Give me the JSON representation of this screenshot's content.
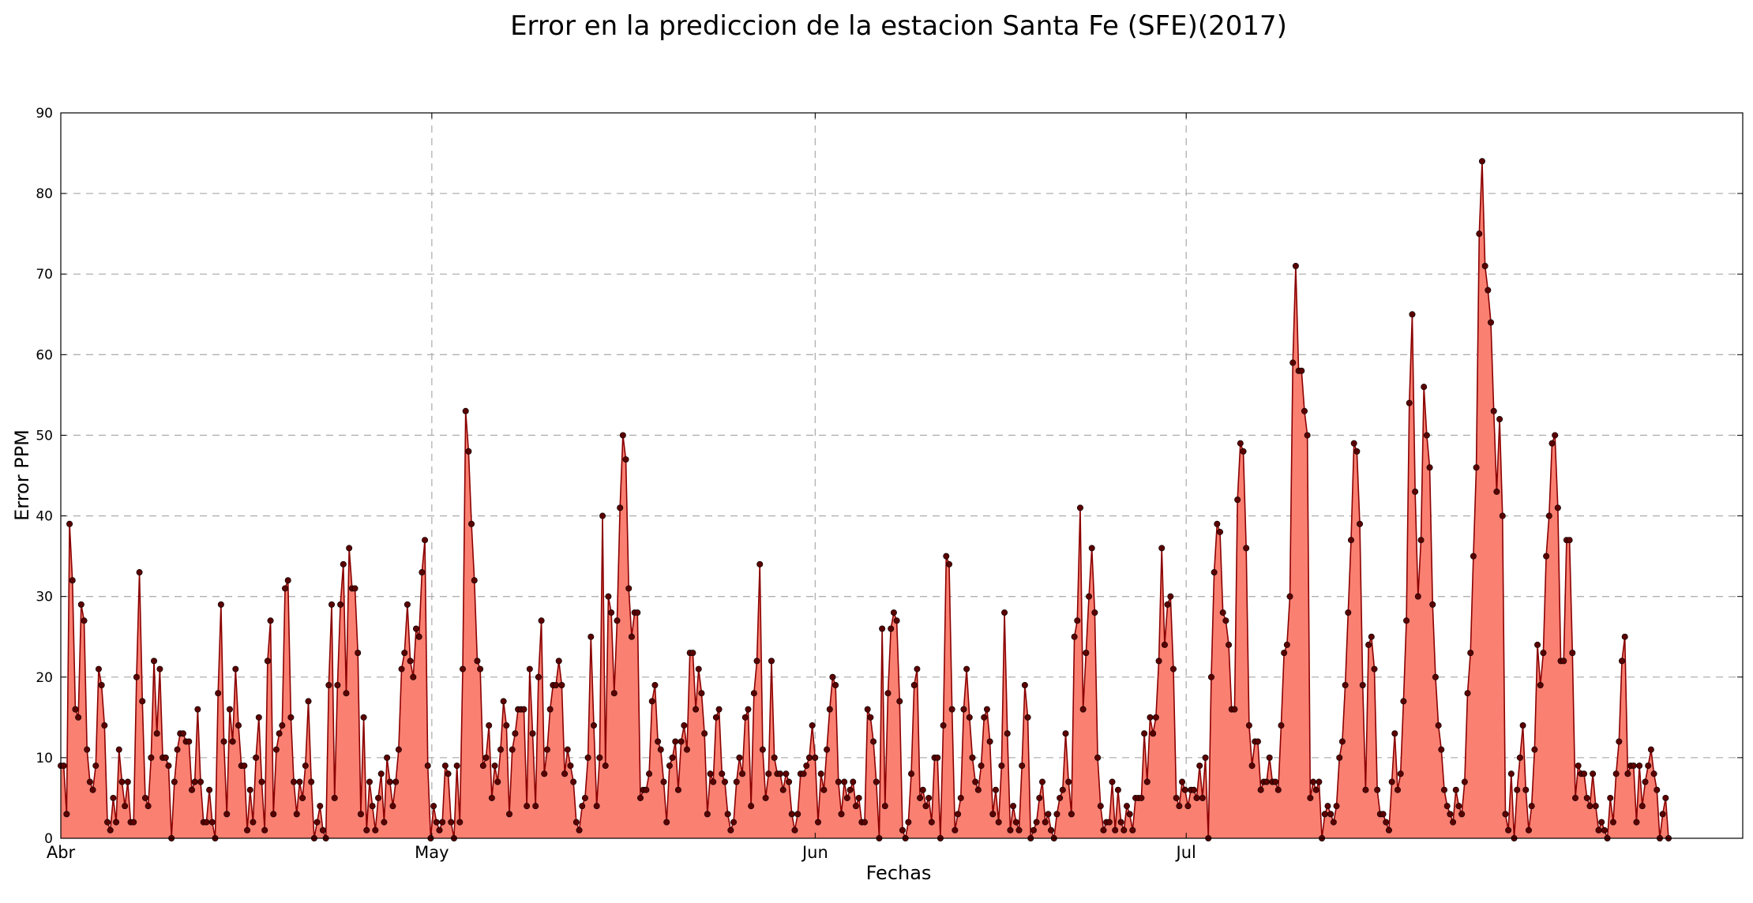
{
  "chart_data": {
    "type": "area",
    "title": "Error en la prediccion de la estacion Santa Fe (SFE)(2017)",
    "xlabel": "Fechas",
    "ylabel": "Error PPM",
    "ylim": [
      0,
      90
    ],
    "yticks": [
      0,
      10,
      20,
      30,
      40,
      50,
      60,
      70,
      80,
      90
    ],
    "xlim": [
      "2017-04-01",
      "2017-08-15"
    ],
    "xticks": [
      {
        "label": "Abr",
        "date": "2017-04-01"
      },
      {
        "label": "May",
        "date": "2017-05-01"
      },
      {
        "label": "Jun",
        "date": "2017-06-01"
      },
      {
        "label": "Jul",
        "date": "2017-07-01"
      }
    ],
    "grid": true,
    "colors": {
      "fill": "#fa8072",
      "line": "#8b0000",
      "marker": "#5a0000"
    },
    "series": [
      {
        "start": "2017-04-01",
        "end": "2017-08-09",
        "values": [
          9,
          9,
          3,
          39,
          32,
          16,
          15,
          29,
          27,
          11,
          7,
          6,
          9,
          21,
          19,
          14,
          2,
          1,
          5,
          2,
          11,
          7,
          4,
          7,
          2,
          2,
          20,
          33,
          17,
          5,
          4,
          10,
          22,
          13,
          21,
          10,
          10,
          9,
          0,
          7,
          11,
          13,
          13,
          12,
          12,
          6,
          7,
          16,
          7,
          2,
          2,
          6,
          2,
          0,
          18,
          29,
          12,
          3,
          16,
          12,
          21,
          14,
          9,
          9,
          1,
          6,
          2,
          10,
          15,
          7,
          1,
          22,
          27,
          3,
          11,
          13,
          14,
          31,
          32,
          15,
          7,
          3,
          7,
          5,
          9,
          17,
          7,
          0,
          2,
          4,
          1,
          0,
          19,
          29,
          5,
          19,
          29,
          34,
          18,
          36,
          31,
          31,
          23,
          3,
          15,
          1,
          7,
          4,
          1,
          5,
          8,
          2,
          10,
          7,
          4,
          7,
          11,
          21,
          23,
          29,
          22,
          20,
          26,
          25,
          33,
          37,
          9,
          0,
          4,
          2,
          1,
          2,
          9,
          8,
          2,
          0,
          9,
          2,
          21,
          53,
          48,
          39,
          32,
          22,
          21,
          9,
          10,
          14,
          5,
          9,
          7,
          11,
          17,
          14,
          3,
          11,
          13,
          16,
          16,
          16,
          4,
          21,
          13,
          4,
          20,
          27,
          8,
          11,
          16,
          19,
          19,
          22,
          19,
          8,
          11,
          9,
          7,
          2,
          1,
          4,
          5,
          10,
          25,
          14,
          4,
          10,
          40,
          9,
          30,
          28,
          18,
          27,
          41,
          50,
          47,
          31,
          25,
          28,
          28,
          5,
          6,
          6,
          8,
          17,
          19,
          12,
          11,
          7,
          2,
          9,
          10,
          12,
          6,
          12,
          14,
          11,
          23,
          23,
          16,
          21,
          18,
          13,
          3,
          8,
          7,
          15,
          16,
          8,
          7,
          3,
          1,
          2,
          7,
          10,
          8,
          15,
          16,
          4,
          18,
          22,
          34,
          11,
          5,
          8,
          22,
          10,
          8,
          8,
          6,
          8,
          7,
          3,
          1,
          3,
          8,
          8,
          9,
          10,
          14,
          10,
          2,
          8,
          6,
          11,
          16,
          20,
          19,
          7,
          3,
          7,
          5,
          6,
          7,
          4,
          5,
          2,
          2,
          16,
          15,
          12,
          7,
          0,
          26,
          4,
          18,
          26,
          28,
          27,
          17,
          1,
          0,
          2,
          8,
          19,
          21,
          5,
          6,
          4,
          5,
          2,
          10,
          10,
          0,
          14,
          35,
          34,
          16,
          1,
          3,
          5,
          16,
          21,
          15,
          10,
          7,
          6,
          9,
          15,
          16,
          12,
          3,
          6,
          2,
          9,
          28,
          13,
          1,
          4,
          2,
          1,
          9,
          19,
          15,
          0,
          1,
          2,
          5,
          7,
          2,
          3,
          1,
          0,
          3,
          5,
          6,
          13,
          7,
          3,
          25,
          27,
          41,
          16,
          23,
          30,
          36,
          28,
          10,
          4,
          1,
          2,
          2,
          7,
          1,
          6,
          2,
          1,
          4,
          3,
          1,
          5,
          5,
          5,
          13,
          7,
          15,
          13,
          15,
          22,
          36,
          24,
          29,
          30,
          21,
          5,
          4,
          7,
          6,
          4,
          6,
          6,
          5,
          9,
          5,
          10,
          0,
          20,
          33,
          39,
          38,
          28,
          27,
          24,
          16,
          16,
          42,
          49,
          48,
          36,
          14,
          9,
          12,
          12,
          6,
          7,
          7,
          10,
          7,
          7,
          6,
          14,
          23,
          24,
          30,
          59,
          71,
          58,
          58,
          53,
          50,
          5,
          7,
          6,
          7,
          0,
          3,
          4,
          3,
          2,
          4,
          10,
          12,
          19,
          28,
          37,
          49,
          48,
          39,
          19,
          6,
          24,
          25,
          21,
          6,
          3,
          3,
          2,
          1,
          7,
          13,
          6,
          8,
          17,
          27,
          54,
          65,
          43,
          30,
          37,
          56,
          50,
          46,
          29,
          20,
          14,
          11,
          6,
          4,
          3,
          2,
          6,
          4,
          3,
          7,
          18,
          23,
          35,
          46,
          75,
          84,
          71,
          68,
          64,
          53,
          43,
          52,
          40,
          3,
          1,
          8,
          0,
          6,
          10,
          14,
          6,
          1,
          4,
          11,
          24,
          19,
          23,
          35,
          40,
          49,
          50,
          41,
          22,
          22,
          37,
          37,
          23,
          5,
          9,
          8,
          8,
          5,
          4,
          8,
          4,
          1,
          2,
          1,
          0,
          5,
          2,
          8,
          12,
          22,
          25,
          8,
          9,
          9,
          2,
          9,
          4,
          7,
          9,
          11,
          8,
          6,
          0,
          3,
          5,
          0
        ]
      }
    ]
  }
}
